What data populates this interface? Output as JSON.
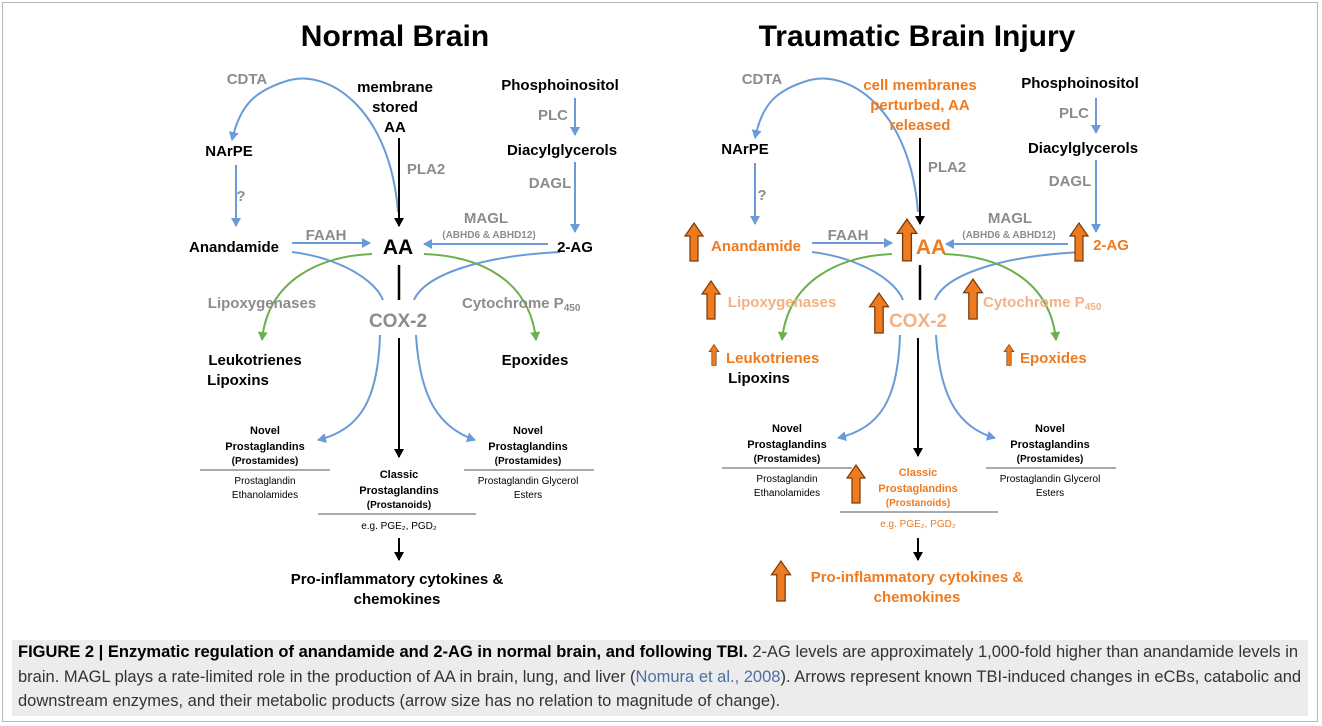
{
  "panels": {
    "normal": {
      "title": "Normal Brain",
      "cdta": "CDTA",
      "membrane": [
        "membrane",
        "stored",
        "AA"
      ],
      "phosphoinositol": "Phosphoinositol",
      "plc": "PLC",
      "narpe": "NArPE",
      "pla2": "PLA2",
      "diacylglycerols": "Diacylglycerols",
      "question": "?",
      "dagl": "DAGL",
      "magl": "MAGL",
      "magl_sub": "(ABHD6 & ABHD12)",
      "faah": "FAAH",
      "anandamide": "Anandamide",
      "aa": "AA",
      "two_ag": "2-AG",
      "lipoxygenases": "Lipoxygenases",
      "cox2": "COX-2",
      "cytochrome": "Cytochrome P",
      "cytochrome_sub": "450",
      "leukotrienes": "Leukotrienes",
      "lipoxins": "Lipoxins",
      "epoxides": "Epoxides",
      "novel_left": [
        "Novel",
        "Prostaglandins",
        "(Prostamides)"
      ],
      "novel_left_sub": [
        "Prostaglandin",
        "Ethanolamides"
      ],
      "classic": [
        "Classic",
        "Prostaglandins",
        "(Prostanoids)"
      ],
      "classic_sub": "e.g. PGE₂, PGD₂",
      "novel_right": [
        "Novel",
        "Prostaglandins",
        "(Prostamides)"
      ],
      "novel_right_sub": [
        "Prostaglandin Glycerol",
        "Esters"
      ],
      "cytokines": [
        "Pro-inflammatory cytokines &",
        "chemokines"
      ]
    },
    "tbi": {
      "title": "Traumatic Brain Injury",
      "cdta": "CDTA",
      "membrane": [
        "cell membranes",
        "perturbed, AA",
        "released"
      ],
      "phosphoinositol": "Phosphoinositol",
      "plc": "PLC",
      "narpe": "NArPE",
      "pla2": "PLA2",
      "diacylglycerols": "Diacylglycerols",
      "question": "?",
      "dagl": "DAGL",
      "magl": "MAGL",
      "magl_sub": "(ABHD6 & ABHD12)",
      "faah": "FAAH",
      "anandamide": "Anandamide",
      "aa": "AA",
      "two_ag": "2-AG",
      "lipoxygenases": "Lipoxygenases",
      "cox2": "COX-2",
      "cytochrome": "Cytochrome P",
      "cytochrome_sub": "450",
      "leukotrienes": "Leukotrienes",
      "lipoxins": "Lipoxins",
      "epoxides": "Epoxides",
      "novel_left": [
        "Novel",
        "Prostaglandins",
        "(Prostamides)"
      ],
      "novel_left_sub": [
        "Prostaglandin",
        "Ethanolamides"
      ],
      "classic": [
        "Classic",
        "Prostaglandins",
        "(Prostanoids)"
      ],
      "classic_sub": "e.g. PGE₂, PGD₂",
      "novel_right": [
        "Novel",
        "Prostaglandins",
        "(Prostamides)"
      ],
      "novel_right_sub": [
        "Prostaglandin Glycerol",
        "Esters"
      ],
      "cytokines": [
        "Pro-inflammatory cytokines &",
        "chemokines"
      ]
    }
  },
  "caption": {
    "label": "FIGURE 2 |",
    "title": "Enzymatic regulation of anandamide and 2-AG in normal brain, and following TBI.",
    "text1": "2-AG levels are approximately 1,000-fold higher than anandamide levels in brain. MAGL plays a rate-limited role in the production of AA in brain, lung, and liver (",
    "ref": "Nomura et al., 2008",
    "text2": "). Arrows represent known TBI-induced changes in eCBs, catabolic and downstream enzymes, and their metabolic products (arrow size has no relation to magnitude of change)."
  },
  "colors": {
    "blue_arrow": "#6a9bd8",
    "green_arrow": "#6ab04c",
    "orange": "#ee7b1f",
    "light_orange": "#f4b183",
    "gray_text": "#8c8c8c"
  }
}
